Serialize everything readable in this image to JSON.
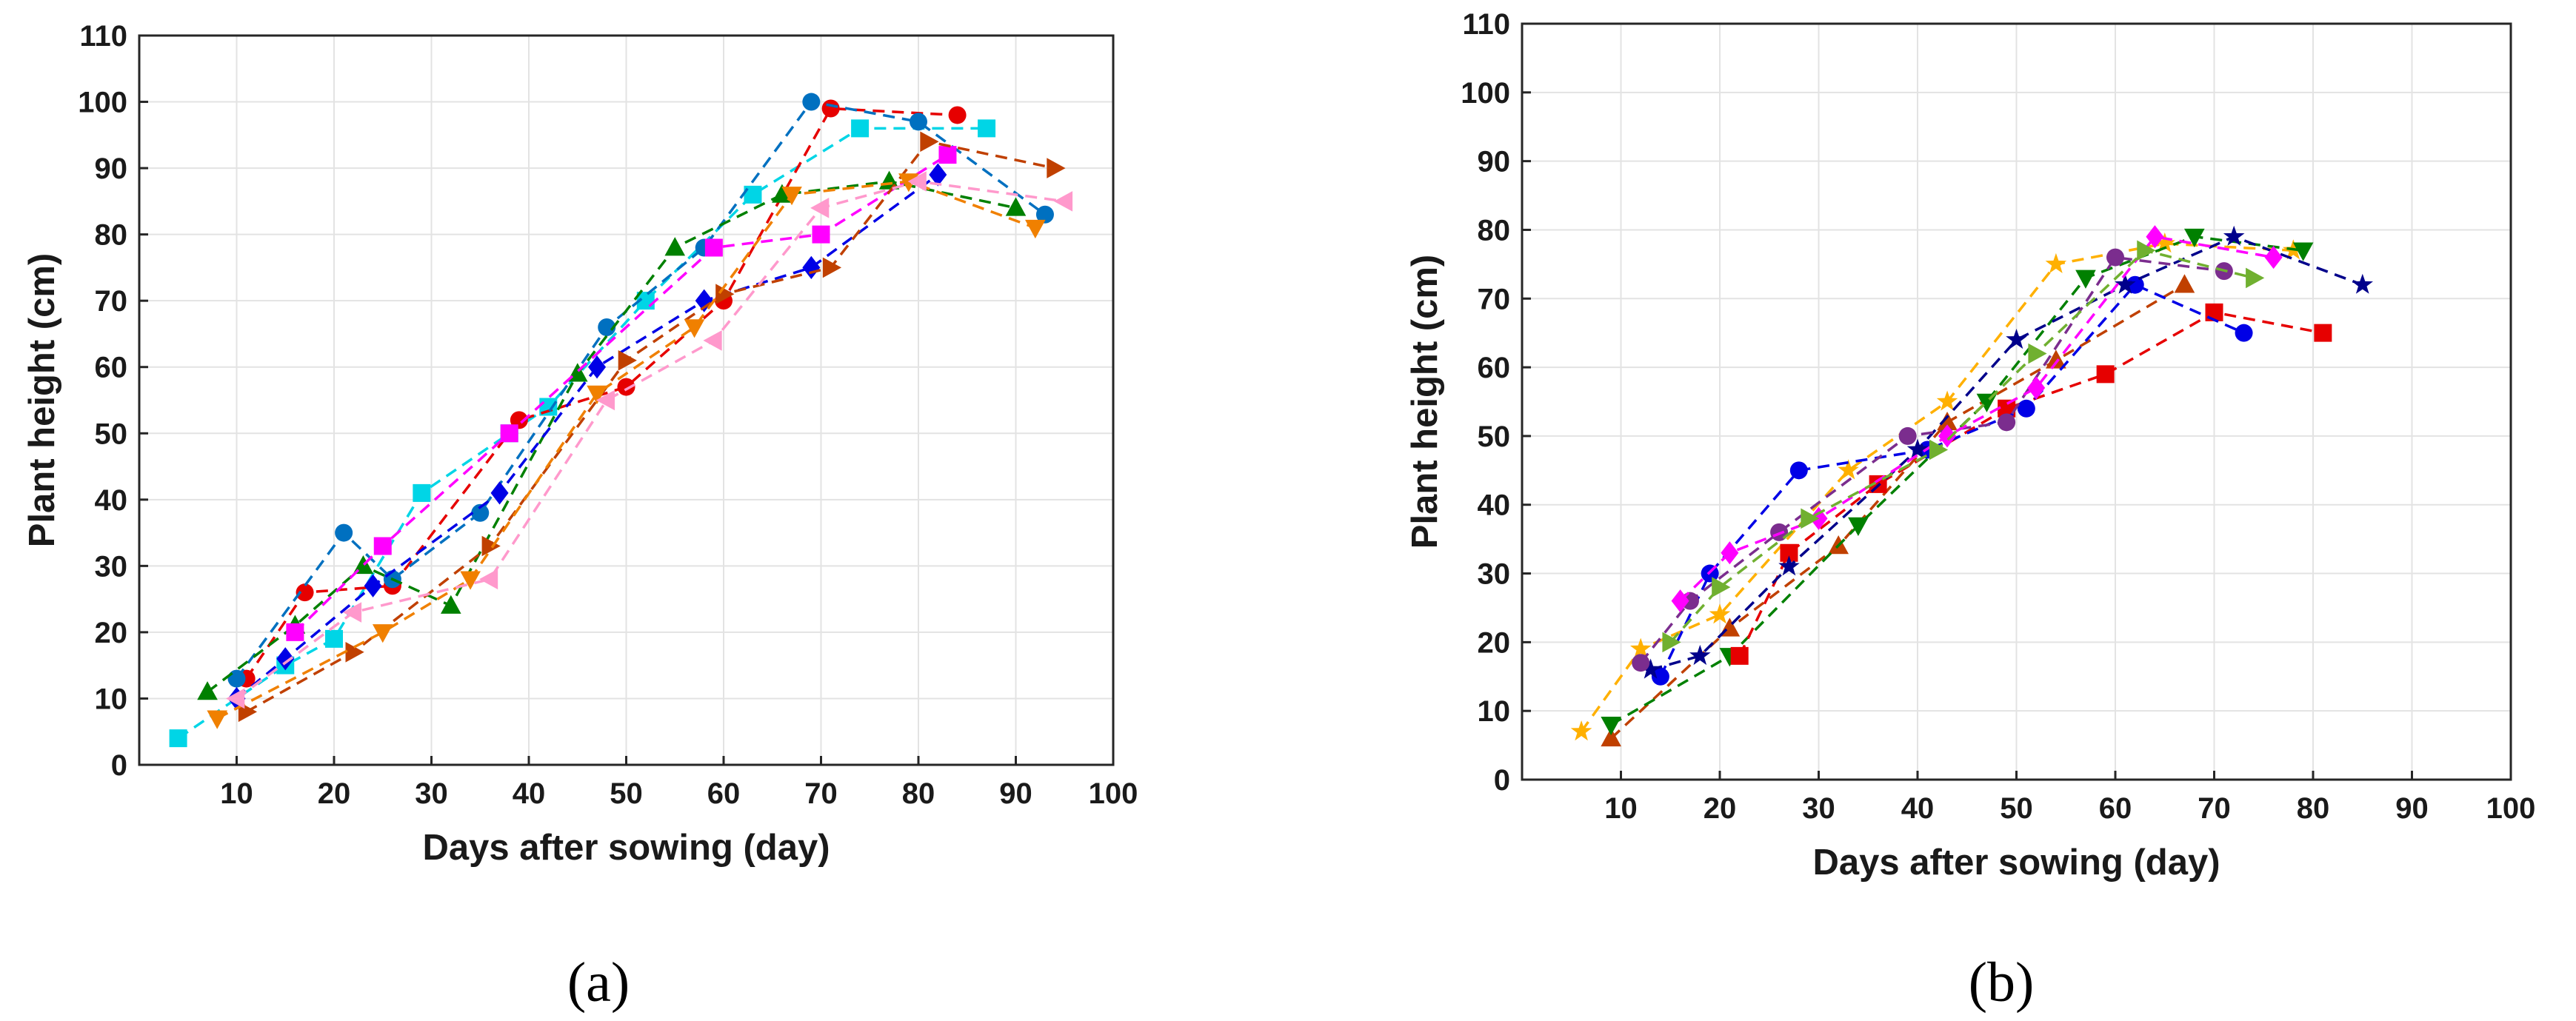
{
  "chart_data": [
    {
      "type": "line",
      "panel_label": "(a)",
      "title": "",
      "xlabel": "Days after sowing (day)",
      "ylabel": "Plant height  (cm)",
      "xlim": [
        0,
        100
      ],
      "ylim": [
        0,
        110
      ],
      "xticks": [
        10,
        20,
        30,
        40,
        50,
        60,
        70,
        80,
        90,
        100
      ],
      "yticks": [
        0,
        10,
        20,
        30,
        40,
        50,
        60,
        70,
        80,
        90,
        100,
        110
      ],
      "grid": true,
      "legend": "none",
      "series": [
        {
          "name": "cyan-square",
          "color": "#00d5e6",
          "marker": "square",
          "x": [
            4,
            15,
            20,
            29,
            38,
            42,
            52,
            63,
            74,
            87
          ],
          "y": [
            4,
            15,
            19,
            41,
            50,
            54,
            70,
            86,
            96,
            96
          ]
        },
        {
          "name": "red-circle",
          "color": "#e60000",
          "marker": "circle",
          "x": [
            11,
            17,
            26,
            39,
            50,
            60,
            71,
            84
          ],
          "y": [
            13,
            26,
            27,
            52,
            57,
            70,
            99,
            98
          ]
        },
        {
          "name": "blue-circle",
          "color": "#0070c0",
          "marker": "circle",
          "x": [
            10,
            21,
            26,
            35,
            48,
            58,
            69,
            80,
            93
          ],
          "y": [
            13,
            35,
            28,
            38,
            66,
            78,
            100,
            97,
            83
          ]
        },
        {
          "name": "green-triangle-up",
          "color": "#008000",
          "marker": "triangle-up",
          "x": [
            7,
            16,
            23,
            32,
            45,
            55,
            66,
            77,
            90
          ],
          "y": [
            11,
            21,
            30,
            24,
            59,
            78,
            86,
            88,
            84
          ]
        },
        {
          "name": "magenta-square",
          "color": "#ff00ff",
          "marker": "square",
          "x": [
            16,
            25,
            38,
            59,
            70,
            83
          ],
          "y": [
            20,
            33,
            50,
            78,
            80,
            92
          ]
        },
        {
          "name": "blue-diamond",
          "color": "#0000e6",
          "marker": "diamond",
          "x": [
            10,
            15,
            24,
            37,
            47,
            58,
            69,
            82
          ],
          "y": [
            10,
            16,
            27,
            41,
            60,
            70,
            75,
            89
          ]
        },
        {
          "name": "brown-triangle-right",
          "color": "#c04000",
          "marker": "triangle-right",
          "x": [
            11,
            22,
            36,
            50,
            60,
            71,
            81,
            94
          ],
          "y": [
            8,
            17,
            33,
            61,
            71,
            75,
            94,
            90
          ]
        },
        {
          "name": "orange-triangle-down",
          "color": "#f08000",
          "marker": "triangle-down",
          "x": [
            8,
            25,
            34,
            47,
            57,
            67,
            79,
            92
          ],
          "y": [
            7,
            20,
            28,
            56,
            66,
            86,
            88,
            81
          ]
        },
        {
          "name": "pink-triangle-left",
          "color": "#ff99cc",
          "marker": "triangle-left",
          "x": [
            10,
            22,
            36,
            48,
            59,
            70,
            80,
            95
          ],
          "y": [
            10,
            23,
            28,
            55,
            64,
            84,
            88,
            85
          ]
        }
      ]
    },
    {
      "type": "line",
      "panel_label": "(b)",
      "title": "",
      "xlabel": "Days after sowing (day)",
      "ylabel": "Plant height  (cm)",
      "xlim": [
        0,
        100
      ],
      "ylim": [
        0,
        110
      ],
      "xticks": [
        10,
        20,
        30,
        40,
        50,
        60,
        70,
        80,
        90,
        100
      ],
      "yticks": [
        0,
        10,
        20,
        30,
        40,
        50,
        60,
        70,
        80,
        90,
        100,
        110
      ],
      "grid": true,
      "legend": "none",
      "series": [
        {
          "name": "orange-star",
          "color": "#ffb000",
          "marker": "star",
          "x": [
            6,
            12,
            20,
            33,
            43,
            54,
            65,
            78
          ],
          "y": [
            7,
            19,
            24,
            45,
            55,
            75,
            78,
            77
          ]
        },
        {
          "name": "brown-triangle-up",
          "color": "#c04000",
          "marker": "triangle-up",
          "x": [
            9,
            21,
            32,
            43,
            54,
            67
          ],
          "y": [
            6,
            22,
            34,
            52,
            61,
            72
          ]
        },
        {
          "name": "green-triangle-down",
          "color": "#008000",
          "marker": "triangle-down",
          "x": [
            9,
            21,
            34,
            47,
            57,
            68,
            79
          ],
          "y": [
            8,
            18,
            37,
            55,
            73,
            79,
            77
          ]
        },
        {
          "name": "red-square",
          "color": "#e60000",
          "marker": "square",
          "x": [
            22,
            27,
            36,
            49,
            59,
            70,
            81
          ],
          "y": [
            18,
            33,
            43,
            54,
            59,
            68,
            65
          ]
        },
        {
          "name": "blue-circle",
          "color": "#0000e6",
          "marker": "circle",
          "x": [
            14,
            19,
            28,
            41,
            51,
            62,
            73
          ],
          "y": [
            15,
            30,
            45,
            48,
            54,
            72,
            65
          ]
        },
        {
          "name": "navy-star",
          "color": "#00008b",
          "marker": "star",
          "x": [
            13,
            18,
            27,
            40,
            50,
            61,
            72,
            85
          ],
          "y": [
            16,
            18,
            31,
            48,
            64,
            72,
            79,
            72
          ]
        },
        {
          "name": "purple-circle",
          "color": "#7b2d8e",
          "marker": "circle",
          "x": [
            12,
            17,
            26,
            39,
            49,
            60,
            71
          ],
          "y": [
            17,
            26,
            36,
            50,
            52,
            76,
            74
          ]
        },
        {
          "name": "magenta-diamond",
          "color": "#ff00ff",
          "marker": "diamond",
          "x": [
            16,
            21,
            30,
            43,
            52,
            64,
            76
          ],
          "y": [
            26,
            33,
            38,
            50,
            57,
            79,
            76
          ]
        },
        {
          "name": "yellowgreen-triangle-right",
          "color": "#70b030",
          "marker": "triangle-right",
          "x": [
            15,
            20,
            29,
            42,
            52,
            63,
            74
          ],
          "y": [
            20,
            28,
            38,
            48,
            62,
            77,
            73
          ]
        }
      ]
    }
  ]
}
